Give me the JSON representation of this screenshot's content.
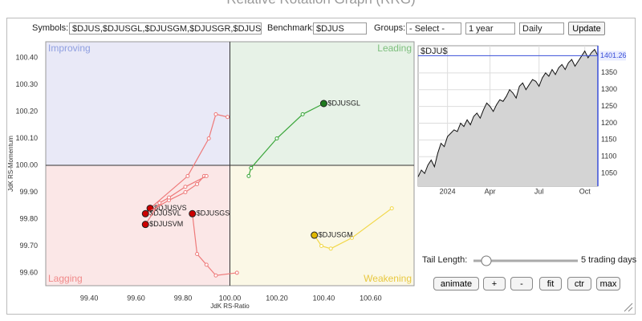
{
  "page_title": "Relative Rotation Graph (RRG)",
  "controls": {
    "symbols_label": "Symbols:",
    "symbols_value": "$DJUS,$DJUSGL,$DJUSGM,$DJUSGR,$DJUSGS",
    "benchmark_label": "Benchmark:",
    "benchmark_value": "$DJUS",
    "groups_label": "Groups:",
    "groups_value": "- Select -",
    "period_value": "1 year",
    "frequency_value": "Daily",
    "update_button": "Update",
    "tail_length_label": "Tail Length:",
    "tail_length_value": "5 trading days"
  },
  "buttons": [
    "animate",
    "+",
    "-",
    "fit",
    "ctr",
    "max"
  ],
  "chart_data": [
    {
      "type": "scatter",
      "xlabel": "JdK RS-Ratio",
      "ylabel": "JdK RS-Momentum",
      "xlim": [
        99.215,
        100.785
      ],
      "ylim": [
        99.552,
        100.46
      ],
      "center": [
        100,
        100
      ],
      "xticks": [
        {
          "value": 99.4,
          "label": "99.40"
        },
        {
          "value": 99.6,
          "label": "99.60"
        },
        {
          "value": 99.8,
          "label": "99.80"
        },
        {
          "value": 100,
          "label": "100.00"
        },
        {
          "value": 100.2,
          "label": "100.20"
        },
        {
          "value": 100.4,
          "label": "100.40"
        },
        {
          "value": 100.6,
          "label": "100.60"
        }
      ],
      "yticks": [
        {
          "value": 99.6,
          "label": "99.60"
        },
        {
          "value": 99.7,
          "label": "99.70"
        },
        {
          "value": 99.8,
          "label": "99.80"
        },
        {
          "value": 99.9,
          "label": "99.90"
        },
        {
          "value": 100,
          "label": "100.00"
        },
        {
          "value": 100.1,
          "label": "100.10"
        },
        {
          "value": 100.2,
          "label": "100.20"
        },
        {
          "value": 100.3,
          "label": "100.30"
        },
        {
          "value": 100.4,
          "label": "100.40"
        }
      ],
      "quadrants": [
        {
          "label": "Improving",
          "position": "top-left",
          "color": "#e9e9f7",
          "label_color": "#8f9fe0"
        },
        {
          "label": "Leading",
          "position": "top-right",
          "color": "#e7f2e7",
          "label_color": "#7dbf7d"
        },
        {
          "label": "Lagging",
          "position": "bottom-left",
          "color": "#fbe7e7",
          "label_color": "#f08a8a"
        },
        {
          "label": "Weakening",
          "position": "bottom-right",
          "color": "#fbf8e6",
          "label_color": "#e8c840"
        }
      ],
      "series": [
        {
          "name": "$DJUSGL",
          "color": "#3aa63a",
          "head_color": "#1e7a1e",
          "x": [
            100.08,
            100.09,
            100.2,
            100.31,
            100.4
          ],
          "y": [
            99.96,
            99.99,
            100.1,
            100.19,
            100.23
          ]
        },
        {
          "name": "$DJUSGM",
          "color": "#f2d84a",
          "head_color": "#e0b800",
          "x": [
            100.69,
            100.52,
            100.43,
            100.39,
            100.36
          ],
          "y": [
            99.84,
            99.73,
            99.69,
            99.7,
            99.74
          ]
        },
        {
          "name": "$DJUSGS",
          "color": "#ee7a7a",
          "head_color": "#cc0000",
          "x": [
            100.03,
            99.94,
            99.9,
            99.86,
            99.84
          ],
          "y": [
            99.6,
            99.59,
            99.63,
            99.67,
            99.82
          ]
        },
        {
          "name": "$DJUSVS",
          "color": "#ee7a7a",
          "head_color": "#cc0000",
          "x": [
            99.99,
            99.94,
            99.91,
            99.82,
            99.66
          ],
          "y": [
            100.18,
            100.19,
            100.1,
            99.96,
            99.84
          ]
        },
        {
          "name": "$DJUSVL",
          "color": "#ee7a7a",
          "head_color": "#cc0000",
          "x": [
            99.89,
            99.86,
            99.81,
            99.74,
            99.64
          ],
          "y": [
            99.96,
            99.93,
            99.9,
            99.87,
            99.82
          ]
        },
        {
          "name": "$DJUSVM",
          "color": "#ee7a7a",
          "head_color": "#cc0000",
          "x": [
            99.9,
            99.81,
            99.74,
            99.7,
            99.64
          ],
          "y": [
            99.96,
            99.92,
            99.88,
            99.86,
            99.78
          ]
        }
      ]
    },
    {
      "type": "line",
      "title": "$DJU$",
      "color": "#111111",
      "fill": "#d4d4d4",
      "last_color": "#3a4fd8",
      "xlim": [
        0,
        55
      ],
      "ylim": [
        1012,
        1431
      ],
      "xticks": [
        {
          "value": 9,
          "label": "2024"
        },
        {
          "value": 22,
          "label": "Apr"
        },
        {
          "value": 37,
          "label": "Jul"
        },
        {
          "value": 51,
          "label": "Oct"
        }
      ],
      "yticks": [
        1050,
        1100,
        1150,
        1200,
        1250,
        1300,
        1350
      ],
      "values": [
        1040,
        1060,
        1050,
        1075,
        1090,
        1070,
        1110,
        1140,
        1130,
        1160,
        1170,
        1180,
        1175,
        1200,
        1190,
        1210,
        1195,
        1220,
        1230,
        1215,
        1240,
        1260,
        1250,
        1235,
        1255,
        1270,
        1265,
        1280,
        1300,
        1290,
        1275,
        1310,
        1320,
        1300,
        1315,
        1330,
        1325,
        1310,
        1335,
        1350,
        1340,
        1360,
        1345,
        1365,
        1375,
        1360,
        1380,
        1390,
        1370,
        1385,
        1400,
        1415,
        1395,
        1410,
        1420,
        1401.26
      ]
    }
  ]
}
